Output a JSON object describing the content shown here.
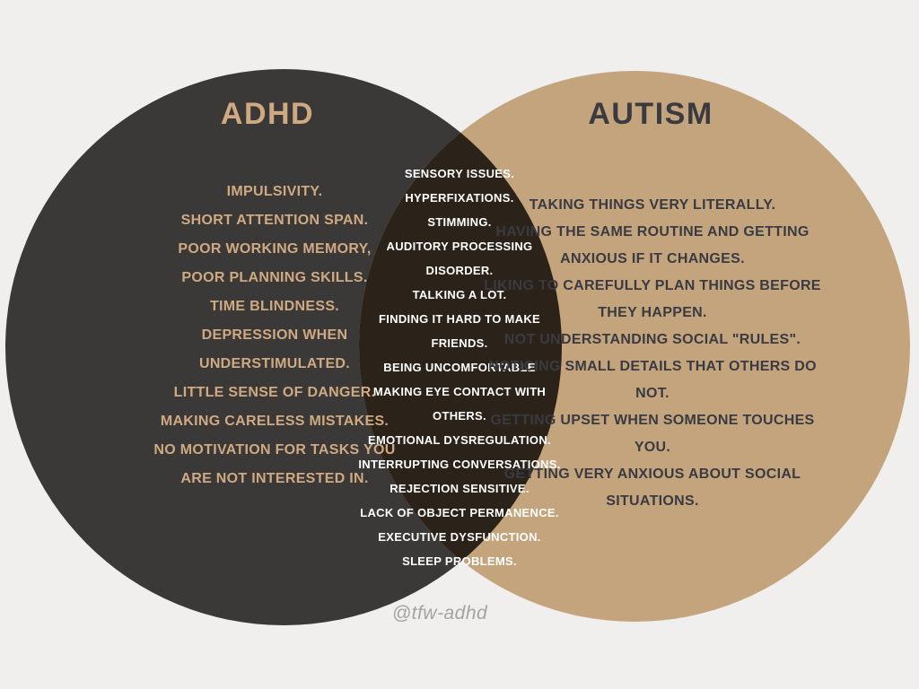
{
  "colors": {
    "background": "#f0efed",
    "left_circle": "#3b3938",
    "right_circle": "#c4a47d",
    "overlap_region": "#2b2219",
    "left_text": "#cfa982",
    "right_text": "#3a3a41",
    "overlap_text": "#ffffff",
    "watermark_text": "#a3a3a3"
  },
  "diagram": {
    "type": "venn-2-circle",
    "left": {
      "title": "ADHD",
      "items": [
        "IMPULSIVITY.",
        "SHORT ATTENTION SPAN.",
        "POOR WORKING MEMORY,",
        "POOR PLANNING SKILLS.",
        "TIME BLINDNESS.",
        "DEPRESSION WHEN UNDERSTIMULATED.",
        "LITTLE SENSE OF DANGER.",
        "MAKING CARELESS MISTAKES.",
        "NO MOTIVATION FOR TASKS YOU ARE NOT INTERESTED IN."
      ]
    },
    "overlap": {
      "items": [
        "SENSORY ISSUES.",
        "HYPERFIXATIONS.",
        "STIMMING.",
        "AUDITORY PROCESSING DISORDER.",
        "TALKING A LOT.",
        "FINDING IT HARD TO MAKE FRIENDS.",
        "BEING UNCOMFORTABLE MAKING EYE CONTACT WITH OTHERS.",
        "EMOTIONAL DYSREGULATION.",
        "INTERRUPTING CONVERSATIONS.",
        "REJECTION SENSITIVE.",
        "LACK OF OBJECT PERMANENCE.",
        "EXECUTIVE DYSFUNCTION.",
        "SLEEP PROBLEMS."
      ]
    },
    "right": {
      "title": "AUTISM",
      "items": [
        "TAKING THINGS VERY LITERALLY.",
        "HAVING THE SAME ROUTINE AND GETTING ANXIOUS IF IT CHANGES.",
        "LIKING TO CAREFULLY PLAN THINGS BEFORE THEY HAPPEN.",
        "NOT UNDERSTANDING SOCIAL \"RULES\".",
        "NOTICING SMALL DETAILS THAT OTHERS DO NOT.",
        "GETTING UPSET WHEN SOMEONE TOUCHES YOU.",
        "GETTING VERY ANXIOUS ABOUT SOCIAL SITUATIONS."
      ]
    },
    "watermark": "@tfw-adhd"
  }
}
